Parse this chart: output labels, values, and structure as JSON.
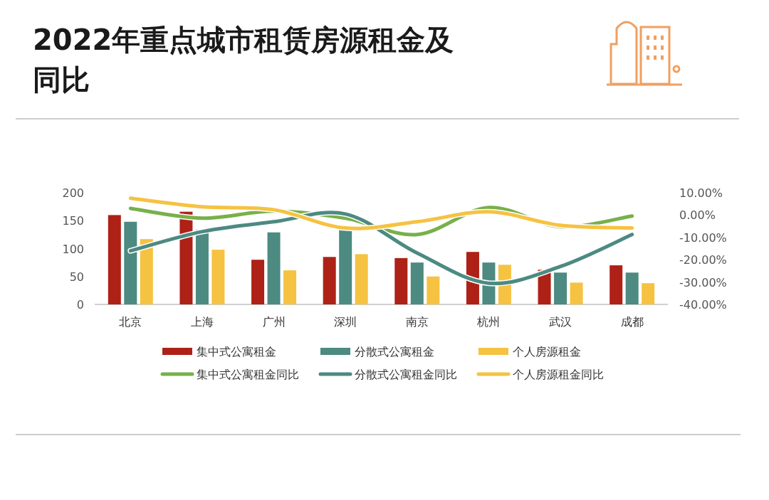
{
  "chart_data": {
    "type": "bar",
    "title": "2022年重点城市租赁房源租金及同比",
    "categories": [
      "北京",
      "上海",
      "广州",
      "深圳",
      "南京",
      "杭州",
      "武汉",
      "成都"
    ],
    "series": [
      {
        "name": "集中式公寓租金",
        "color": "#ae2116",
        "values": [
          160,
          166,
          80,
          85,
          83,
          94,
          62,
          70
        ]
      },
      {
        "name": "分散式公寓租金",
        "color": "#4c8a82",
        "values": [
          148,
          134,
          129,
          134,
          75,
          75,
          57,
          57
        ]
      },
      {
        "name": "个人房源租金",
        "color": "#f5c242",
        "values": [
          117,
          98,
          61,
          90,
          50,
          71,
          39,
          38
        ]
      },
      {
        "name": "集中式公寓租金同比",
        "type": "line",
        "axis": "y2",
        "color": "#78b04a",
        "values": [
          3.0,
          -1.4,
          1.8,
          -1.4,
          -8.7,
          3.4,
          -5.2,
          -0.4
        ]
      },
      {
        "name": "分散式公寓租金同比",
        "type": "line",
        "axis": "y2",
        "color": "#4c8a82",
        "values": [
          -16,
          -7.4,
          -3,
          0.5,
          -17,
          -30.5,
          -23,
          -8.7
        ]
      },
      {
        "name": "个人房源租金同比",
        "type": "line",
        "axis": "y2",
        "color": "#f5c242",
        "values": [
          7.5,
          3.7,
          2.4,
          -5.8,
          -3,
          1.5,
          -4.6,
          -5.8
        ]
      }
    ],
    "ylim": [
      0,
      200
    ],
    "yticks": [
      0,
      50,
      100,
      150,
      200
    ],
    "y2lim": [
      -40,
      10
    ],
    "y2ticks": [
      {
        "value": 10,
        "label": "10.00%"
      },
      {
        "value": 0,
        "label": "0.00%"
      },
      {
        "value": -10,
        "label": "-10.00%"
      },
      {
        "value": -20,
        "label": "-20.00%"
      },
      {
        "value": -30,
        "label": "-30.00%"
      },
      {
        "value": -40,
        "label": "-40.00%"
      }
    ],
    "legend": "bottom"
  }
}
